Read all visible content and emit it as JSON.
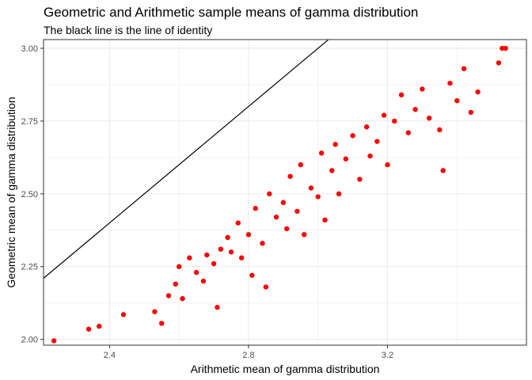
{
  "chart_data": {
    "type": "scatter",
    "title": "Geometric and Arithmetic sample means of gamma distribution",
    "subtitle": "The black line is the line of identity",
    "xlabel": "Arithmetic mean of gamma distribution",
    "ylabel": "Geometric mean of gamma distribution",
    "xlim": [
      2.21,
      3.6
    ],
    "ylim": [
      1.98,
      3.03
    ],
    "x_ticks": [
      "2.4",
      "2.8",
      "3.2"
    ],
    "y_ticks": [
      "2.00",
      "2.25",
      "2.50",
      "2.75",
      "3.00"
    ],
    "grid": true,
    "point_color": "#ff0000",
    "identity_line_color": "#000000",
    "reference_line": "y = x",
    "series": [
      {
        "points": [
          [
            2.24,
            1.995
          ],
          [
            2.34,
            2.035
          ],
          [
            2.37,
            2.045
          ],
          [
            2.44,
            2.085
          ],
          [
            2.53,
            2.095
          ],
          [
            2.55,
            2.055
          ],
          [
            2.57,
            2.15
          ],
          [
            2.59,
            2.19
          ],
          [
            2.6,
            2.25
          ],
          [
            2.61,
            2.14
          ],
          [
            2.63,
            2.28
          ],
          [
            2.65,
            2.23
          ],
          [
            2.67,
            2.2
          ],
          [
            2.68,
            2.29
          ],
          [
            2.7,
            2.26
          ],
          [
            2.71,
            2.11
          ],
          [
            2.72,
            2.31
          ],
          [
            2.74,
            2.35
          ],
          [
            2.75,
            2.3
          ],
          [
            2.77,
            2.4
          ],
          [
            2.78,
            2.28
          ],
          [
            2.8,
            2.36
          ],
          [
            2.81,
            2.22
          ],
          [
            2.82,
            2.45
          ],
          [
            2.84,
            2.33
          ],
          [
            2.85,
            2.18
          ],
          [
            2.86,
            2.5
          ],
          [
            2.88,
            2.42
          ],
          [
            2.9,
            2.47
          ],
          [
            2.91,
            2.38
          ],
          [
            2.92,
            2.56
          ],
          [
            2.94,
            2.44
          ],
          [
            2.95,
            2.6
          ],
          [
            2.96,
            2.36
          ],
          [
            2.98,
            2.52
          ],
          [
            3.0,
            2.49
          ],
          [
            3.01,
            2.64
          ],
          [
            3.02,
            2.41
          ],
          [
            3.04,
            2.58
          ],
          [
            3.05,
            2.67
          ],
          [
            3.06,
            2.5
          ],
          [
            3.08,
            2.62
          ],
          [
            3.1,
            2.7
          ],
          [
            3.12,
            2.55
          ],
          [
            3.14,
            2.73
          ],
          [
            3.15,
            2.63
          ],
          [
            3.17,
            2.68
          ],
          [
            3.19,
            2.77
          ],
          [
            3.2,
            2.6
          ],
          [
            3.22,
            2.75
          ],
          [
            3.24,
            2.84
          ],
          [
            3.26,
            2.71
          ],
          [
            3.28,
            2.79
          ],
          [
            3.3,
            2.86
          ],
          [
            3.32,
            2.76
          ],
          [
            3.35,
            2.72
          ],
          [
            3.36,
            2.58
          ],
          [
            3.38,
            2.88
          ],
          [
            3.4,
            2.82
          ],
          [
            3.42,
            2.93
          ],
          [
            3.44,
            2.78
          ],
          [
            3.46,
            2.85
          ],
          [
            3.52,
            2.95
          ],
          [
            3.53,
            3.0
          ],
          [
            3.54,
            3.0
          ]
        ]
      }
    ]
  }
}
